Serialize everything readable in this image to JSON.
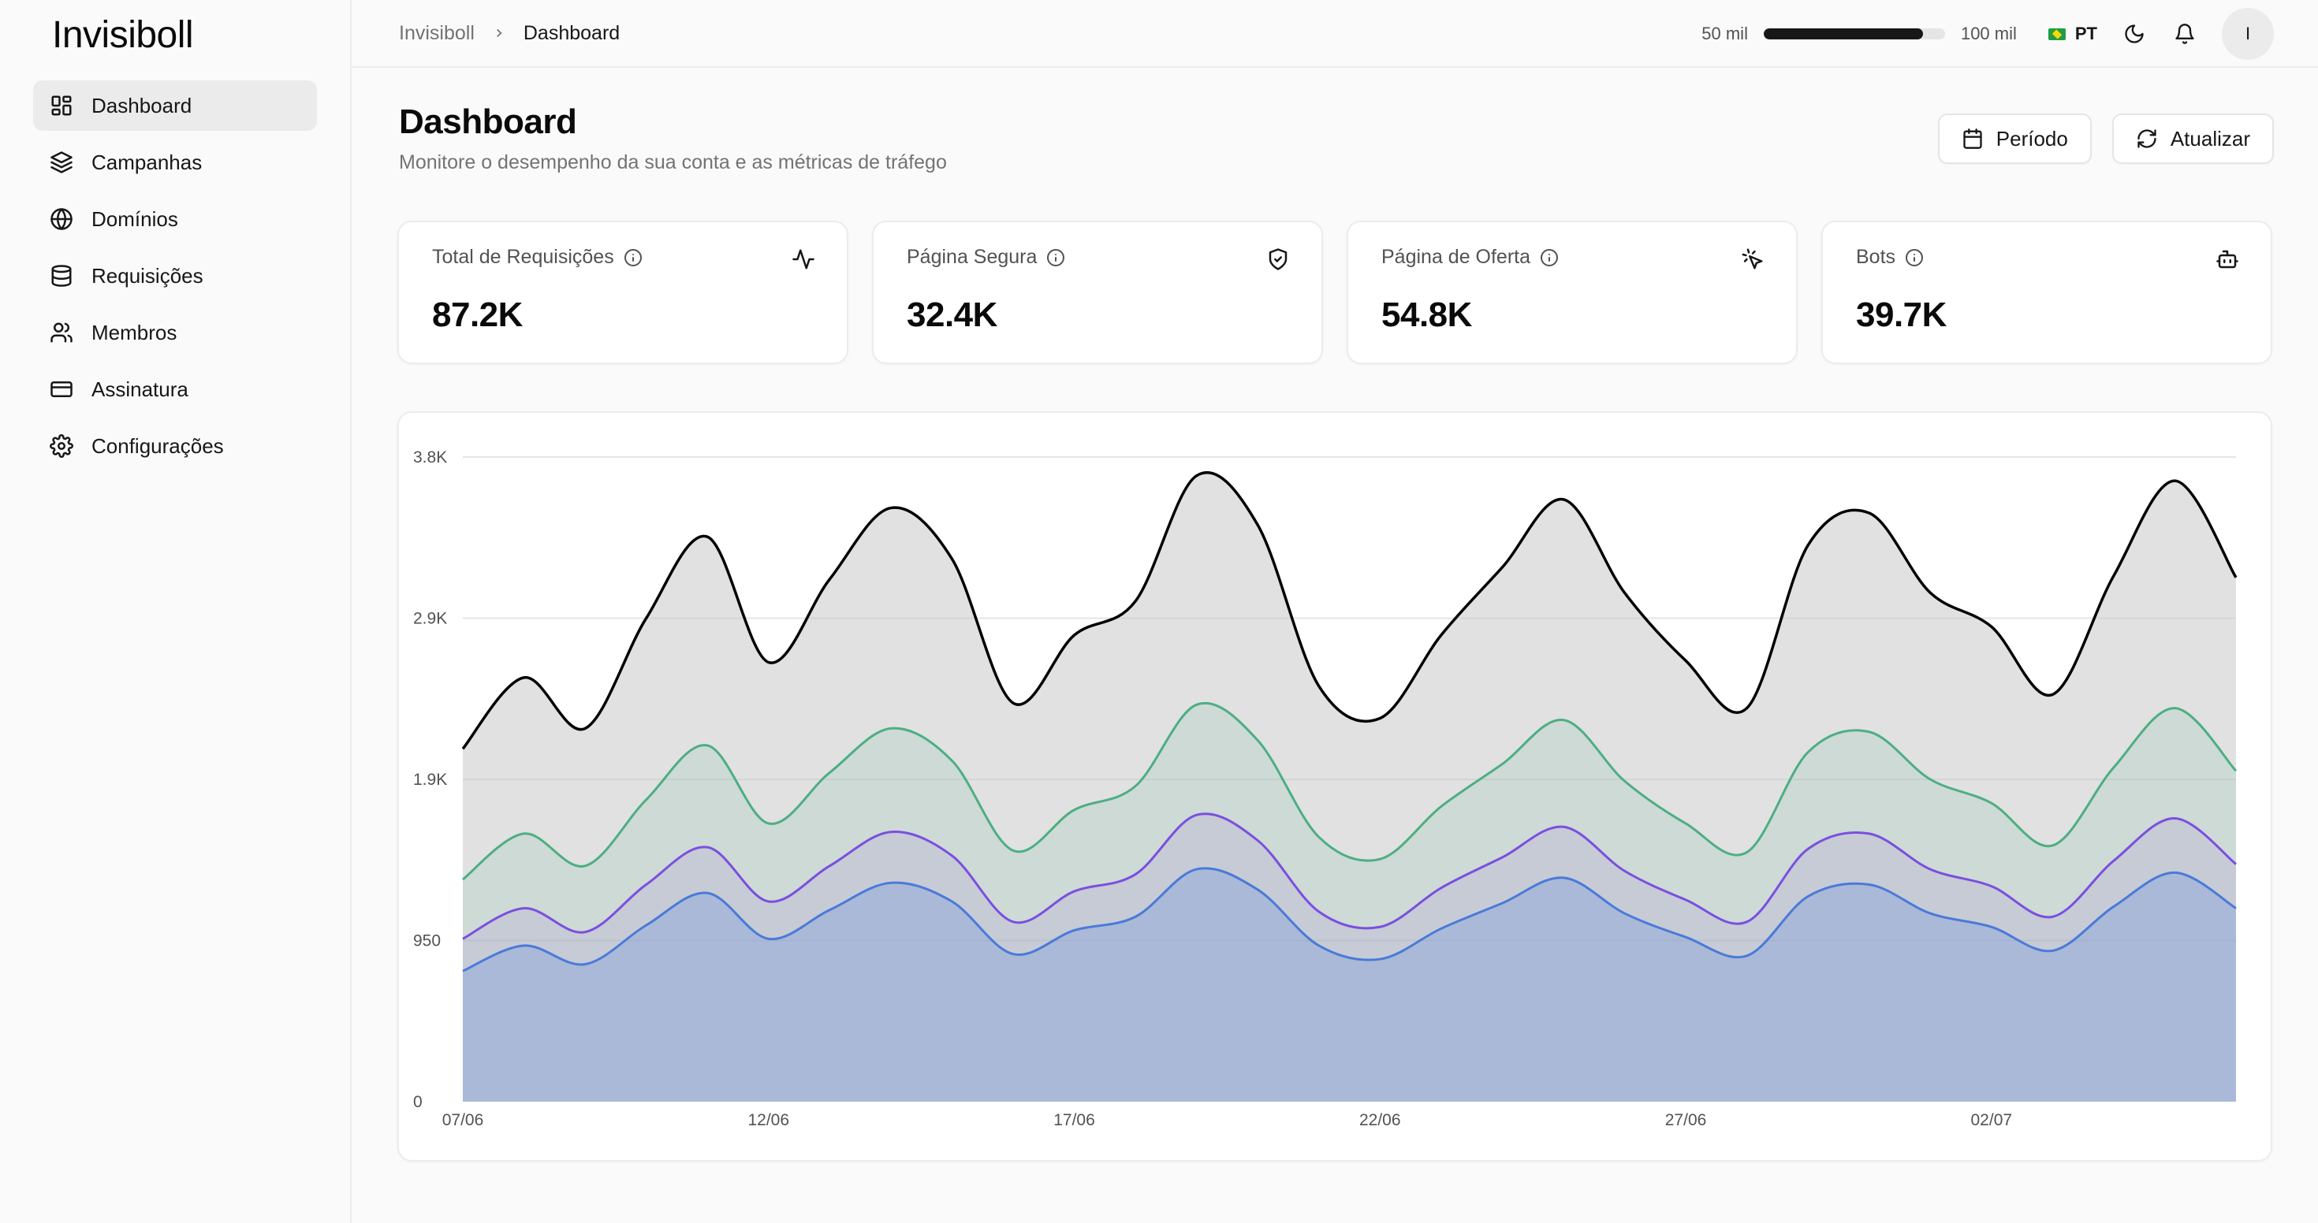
{
  "brand": "Invisiboll",
  "sidebar": {
    "items": [
      {
        "label": "Dashboard",
        "icon": "layout-dashboard-icon",
        "active": true
      },
      {
        "label": "Campanhas",
        "icon": "layers-icon"
      },
      {
        "label": "Domínios",
        "icon": "globe-icon"
      },
      {
        "label": "Requisições",
        "icon": "database-icon"
      },
      {
        "label": "Membros",
        "icon": "users-icon"
      },
      {
        "label": "Assinatura",
        "icon": "credit-card-icon"
      },
      {
        "label": "Configurações",
        "icon": "gear-icon"
      }
    ]
  },
  "breadcrumb": {
    "root": "Invisiboll",
    "current": "Dashboard"
  },
  "usage": {
    "min_label": "50 mil",
    "max_label": "100 mil",
    "fill_fraction": 0.88
  },
  "language": {
    "code": "PT"
  },
  "user": {
    "initial": "I"
  },
  "page": {
    "title": "Dashboard",
    "subtitle": "Monitore o desempenho da sua conta e as métricas de tráfego",
    "period_button": "Período",
    "refresh_button": "Atualizar"
  },
  "stats": [
    {
      "label": "Total de Requisições",
      "value": "87.2K",
      "icon": "activity-icon"
    },
    {
      "label": "Página Segura",
      "value": "32.4K",
      "icon": "shield-check-icon"
    },
    {
      "label": "Página de Oferta",
      "value": "54.8K",
      "icon": "mouse-pointer-click-icon"
    },
    {
      "label": "Bots",
      "value": "39.7K",
      "icon": "bot-icon"
    }
  ],
  "colors": {
    "total": "#000000",
    "green": "#4caf82",
    "purple": "#7b4fe0",
    "blue": "#4a7ad9"
  },
  "chart_data": {
    "type": "area",
    "title": "",
    "x": [
      "07/06",
      "08/06",
      "09/06",
      "10/06",
      "11/06",
      "12/06",
      "13/06",
      "14/06",
      "15/06",
      "16/06",
      "17/06",
      "18/06",
      "19/06",
      "20/06",
      "21/06",
      "22/06",
      "23/06",
      "24/06",
      "25/06",
      "26/06",
      "27/06",
      "28/06",
      "29/06",
      "30/06",
      "01/07",
      "02/07",
      "03/07",
      "04/07",
      "05/07",
      "06/07"
    ],
    "x_tick_labels": [
      "07/06",
      "12/06",
      "17/06",
      "22/06",
      "27/06",
      "02/07"
    ],
    "y_tick_labels": [
      "0",
      "950",
      "1.9K",
      "2.9K",
      "3.8K"
    ],
    "ylim": [
      0,
      3800
    ],
    "grid": true,
    "series": [
      {
        "values": [
          2080,
          2500,
          2200,
          2850,
          3330,
          2590,
          3080,
          3500,
          3200,
          2350,
          2750,
          2950,
          3690,
          3400,
          2450,
          2260,
          2750,
          3150,
          3550,
          3000,
          2600,
          2320,
          3280,
          3470,
          3000,
          2800,
          2400,
          3100,
          3660,
          3090
        ]
      },
      {
        "values": [
          1310,
          1580,
          1390,
          1780,
          2100,
          1640,
          1940,
          2200,
          2010,
          1480,
          1720,
          1860,
          2340,
          2130,
          1560,
          1430,
          1740,
          1990,
          2250,
          1890,
          1640,
          1470,
          2060,
          2180,
          1900,
          1760,
          1510,
          1970,
          2320,
          1950
        ]
      },
      {
        "values": [
          960,
          1140,
          1000,
          1280,
          1500,
          1180,
          1390,
          1590,
          1450,
          1060,
          1240,
          1340,
          1690,
          1540,
          1120,
          1030,
          1260,
          1440,
          1620,
          1360,
          1190,
          1060,
          1490,
          1580,
          1370,
          1270,
          1090,
          1420,
          1670,
          1400
        ]
      },
      {
        "values": [
          770,
          920,
          810,
          1040,
          1230,
          960,
          1130,
          1290,
          1180,
          870,
          1010,
          1090,
          1370,
          1250,
          920,
          840,
          1020,
          1170,
          1320,
          1110,
          970,
          860,
          1210,
          1280,
          1110,
          1030,
          890,
          1150,
          1350,
          1140
        ]
      }
    ]
  }
}
